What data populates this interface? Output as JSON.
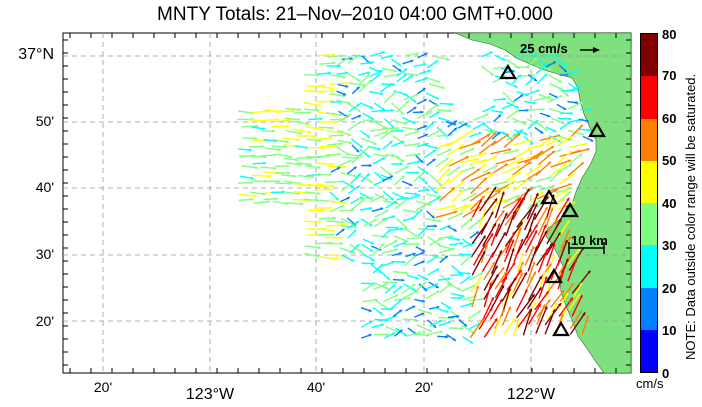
{
  "title": "MNTY Totals: 21–Nov–2010 04:00 GMT+0.000",
  "axes": {
    "lat_labels": [
      "37°N",
      "50'",
      "40'",
      "30'",
      "20'"
    ],
    "lon_labels": [
      "20'",
      "123°W",
      "40'",
      "20'",
      "122°W"
    ]
  },
  "scale": {
    "label": "25 cm/s",
    "km_label": "10 km"
  },
  "colorbar": {
    "ticks": [
      "80",
      "70",
      "60",
      "50",
      "40",
      "30",
      "20",
      "10",
      "0"
    ],
    "unit": "cm/s",
    "colors": [
      "#0000ff",
      "#0080ff",
      "#00ffff",
      "#80ff80",
      "#ffff00",
      "#ff8000",
      "#ff0000",
      "#800000"
    ]
  },
  "note": "NOTE: Data outside color range will be saturated.",
  "colors": {
    "land": "#7ee07e",
    "grid": "#999999"
  }
}
